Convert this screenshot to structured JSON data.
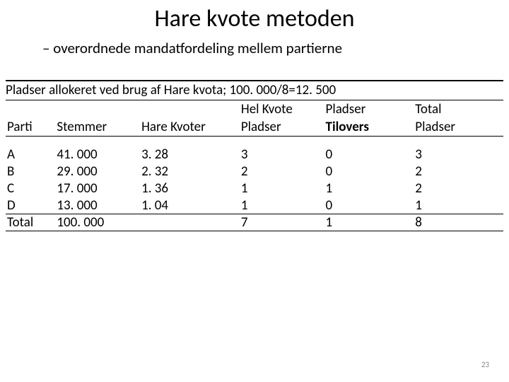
{
  "title": "Hare kvote metoden",
  "subtitle": "– overordnede mandatfordeling mellem partierne",
  "caption": "Pladser allokeret ved brug af Hare kvota; 100. 000/8=12. 500",
  "headers": {
    "top": [
      "",
      "",
      "",
      "Hel Kvote",
      "Pladser",
      "Total"
    ],
    "bottom": [
      "Parti",
      "Stemmer",
      "Hare Kvoter",
      "Pladser",
      "Tilovers",
      "Pladser"
    ]
  },
  "rows": [
    [
      "A",
      "41. 000",
      "3. 28",
      "3",
      "0",
      "3"
    ],
    [
      "B",
      "29. 000",
      "2. 32",
      "2",
      "0",
      "2"
    ],
    [
      "C",
      "17. 000",
      "1. 36",
      "1",
      "1",
      "2"
    ],
    [
      "D",
      "13. 000",
      "1. 04",
      "1",
      "0",
      "1"
    ]
  ],
  "total": [
    "Total",
    "100. 000",
    "",
    "7",
    "1",
    "8"
  ],
  "page_num": "23",
  "style": {
    "font_family": "Calibri, Arial, sans-serif",
    "title_fontsize": 34,
    "subtitle_fontsize": 21,
    "body_fontsize": 19,
    "text_color": "#000000",
    "background_color": "#ffffff",
    "border_color": "#000000",
    "page_num_color": "#888888",
    "column_widths_pct": [
      10,
      17,
      20,
      17,
      18,
      18
    ]
  }
}
